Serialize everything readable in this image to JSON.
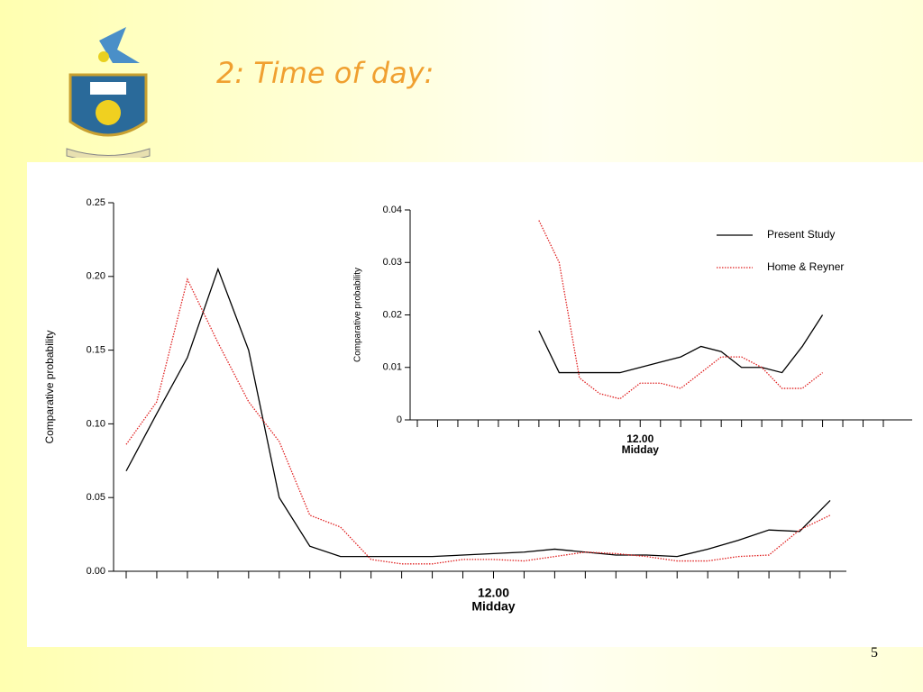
{
  "title": "2: Time of day:",
  "page_number": "5",
  "chart_data": [
    {
      "type": "line",
      "y_label": "Comparative probability",
      "x_label": "Midday",
      "categories": [
        null,
        null,
        null,
        null,
        null,
        null,
        null,
        null,
        null,
        null,
        null,
        null,
        "12.00",
        null,
        null,
        null,
        null,
        null,
        null,
        null,
        null,
        null,
        null,
        null
      ],
      "ylim": [
        0,
        0.25
      ],
      "yticks": [
        {
          "value": 0,
          "label": "0.00"
        },
        0.05,
        {
          "value": 0.1,
          "label": "0.10"
        },
        0.15,
        {
          "value": 0.2,
          "label": "0.20"
        },
        0.25
      ],
      "series": [
        {
          "color": "#000000",
          "line_style": "solid",
          "values": [
            0.068,
            0.107,
            0.145,
            0.205,
            0.15,
            0.05,
            0.017,
            0.01,
            0.01,
            0.01,
            0.01,
            0.011,
            0.012,
            0.013,
            0.015,
            0.013,
            0.011,
            0.011,
            0.01,
            0.015,
            0.021,
            0.028,
            0.027,
            0.048
          ]
        },
        {
          "color": "#e02020",
          "line_style": "dotted",
          "values": [
            0.086,
            0.115,
            0.198,
            0.155,
            0.115,
            0.088,
            0.038,
            0.03,
            0.008,
            0.005,
            0.005,
            0.008,
            0.008,
            0.007,
            0.01,
            0.013,
            0.012,
            0.01,
            0.007,
            0.007,
            0.01,
            0.011,
            0.028,
            0.038
          ]
        }
      ]
    },
    {
      "type": "line",
      "y_label": "Comparative probability",
      "x_label": "Midday",
      "legend": "upper right",
      "categories": [
        null,
        null,
        null,
        null,
        null,
        null,
        null,
        null,
        null,
        null,
        null,
        "12.00",
        null,
        null,
        null,
        null,
        null,
        null,
        null,
        null,
        null,
        null,
        null,
        null
      ],
      "ylim": [
        0,
        0.04
      ],
      "yticks": [
        0,
        0.01,
        0.02,
        0.03,
        0.04
      ],
      "series": [
        {
          "name": "Present Study",
          "color": "#000000",
          "line_style": "solid",
          "values": [
            null,
            null,
            null,
            null,
            null,
            null,
            0.017,
            0.009,
            0.009,
            0.009,
            0.009,
            0.01,
            0.011,
            0.012,
            0.014,
            0.013,
            0.01,
            0.01,
            0.009,
            0.014,
            0.02,
            null,
            null,
            null
          ]
        },
        {
          "name": "Home & Reyner",
          "color": "#e02020",
          "line_style": "dotted",
          "values": [
            null,
            null,
            null,
            null,
            null,
            null,
            0.038,
            0.03,
            0.008,
            0.005,
            0.004,
            0.007,
            0.007,
            0.006,
            0.009,
            0.012,
            0.012,
            0.01,
            0.006,
            0.006,
            0.009,
            null,
            null,
            null
          ]
        }
      ]
    }
  ]
}
